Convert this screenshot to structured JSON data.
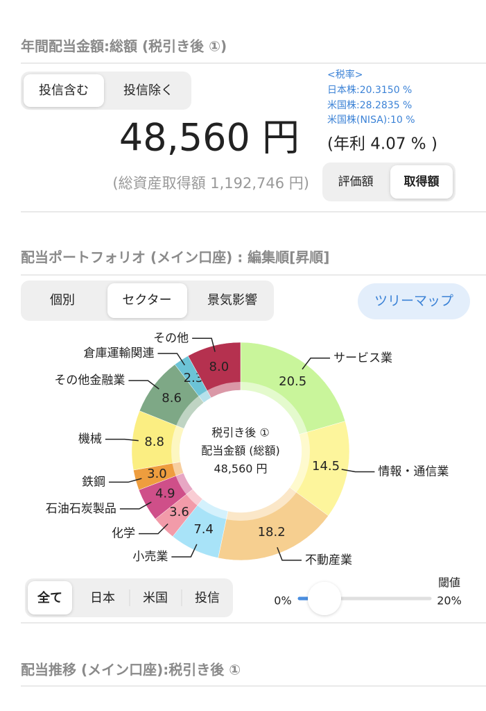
{
  "annual": {
    "title": "年間配当金額:総額 (税引き後 ①)",
    "tabs": [
      "投信含む",
      "投信除く"
    ],
    "tax_rates": [
      "<税率>",
      "日本株:20.3150 %",
      "米国株:28.2835 %",
      "米国株(NISA):10 %"
    ],
    "amount": "48,560 円",
    "yield": "(年利 4.07 % )",
    "total_cost": "(総資産取得額 1,192,746 円)",
    "basis_tabs": [
      "評価額",
      "取得額"
    ]
  },
  "portfolio": {
    "title": "配当ポートフォリオ (メイン口座) : 編集順[昇順]",
    "tabs": [
      "個別",
      "セクター",
      "景気影響"
    ],
    "treemap_button": "ツリーマップ",
    "filter_tabs": [
      "全て",
      "日本",
      "米国",
      "投信"
    ],
    "threshold_label": "閾値",
    "slider_min": "0%",
    "slider_max": "20%"
  },
  "chart_data": {
    "type": "pie",
    "donut": true,
    "center_text": [
      "税引き後 ①",
      "配当金額 (総額)",
      "48,560 円"
    ],
    "categories": [
      "サービス業",
      "情報・通信業",
      "不動産業",
      "小売業",
      "化学",
      "石油石炭製品",
      "鉄鋼",
      "機械",
      "その他金融業",
      "倉庫運輸関連",
      "その他"
    ],
    "values": [
      20.5,
      14.5,
      18.2,
      7.4,
      3.6,
      4.9,
      3.0,
      8.8,
      8.6,
      2.3,
      8.0
    ],
    "value_labels": [
      "20.5",
      "14.5",
      "18.2",
      "7.4",
      "3.6",
      "4.9",
      "3.0",
      "8.8",
      "8.6",
      "2.3",
      "8.0"
    ],
    "colors": [
      "#c9f59b",
      "#fdf59c",
      "#f6cf90",
      "#a8e3f8",
      "#f29ba9",
      "#cf4f89",
      "#ee9d3e",
      "#fbee82",
      "#7ea886",
      "#6cc3d6",
      "#b5314f"
    ]
  },
  "history": {
    "title": "配当推移 (メイン口座):税引き後 ①"
  }
}
